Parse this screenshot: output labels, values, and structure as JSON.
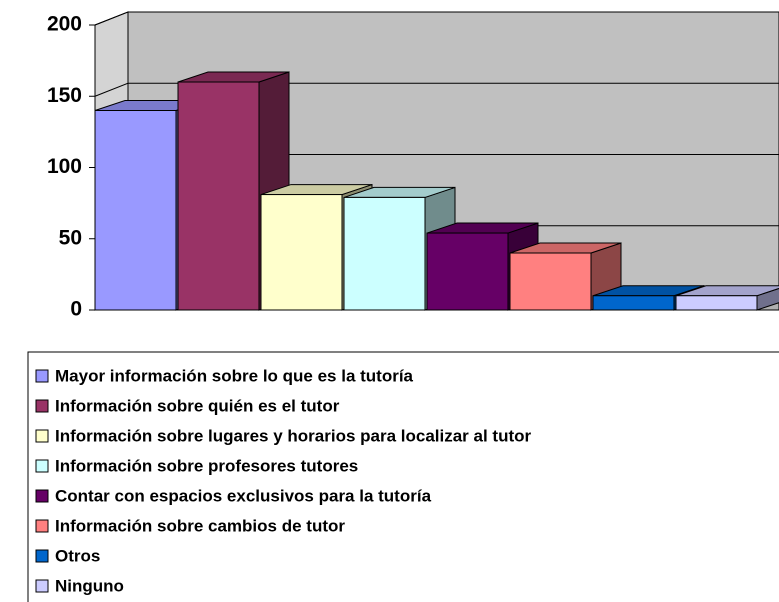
{
  "chart_data": {
    "type": "bar3d",
    "ylim": [
      0,
      200
    ],
    "yticks": [
      0,
      50,
      100,
      150,
      200
    ],
    "grid": true,
    "legend": "bottom",
    "series": [
      {
        "name": "Mayor información sobre lo que es la tutoría",
        "color": "#9999ff",
        "values": [
          140
        ]
      },
      {
        "name": "Información sobre quién es el tutor",
        "color": "#993366",
        "values": [
          160
        ]
      },
      {
        "name": "Información sobre lugares y horarios para localizar al tutor",
        "color": "#ffffcc",
        "values": [
          81
        ]
      },
      {
        "name": "Información sobre profesores tutores",
        "color": "#ccffff",
        "values": [
          79
        ]
      },
      {
        "name": "Contar con espacios exclusivos para la tutoría",
        "color": "#660066",
        "values": [
          54
        ]
      },
      {
        "name": "Información sobre cambios de tutor",
        "color": "#ff8080",
        "values": [
          40
        ]
      },
      {
        "name": "Otros",
        "color": "#0066cc",
        "values": [
          10
        ]
      },
      {
        "name": "Ninguno",
        "color": "#ccccff",
        "values": [
          10
        ]
      }
    ]
  }
}
